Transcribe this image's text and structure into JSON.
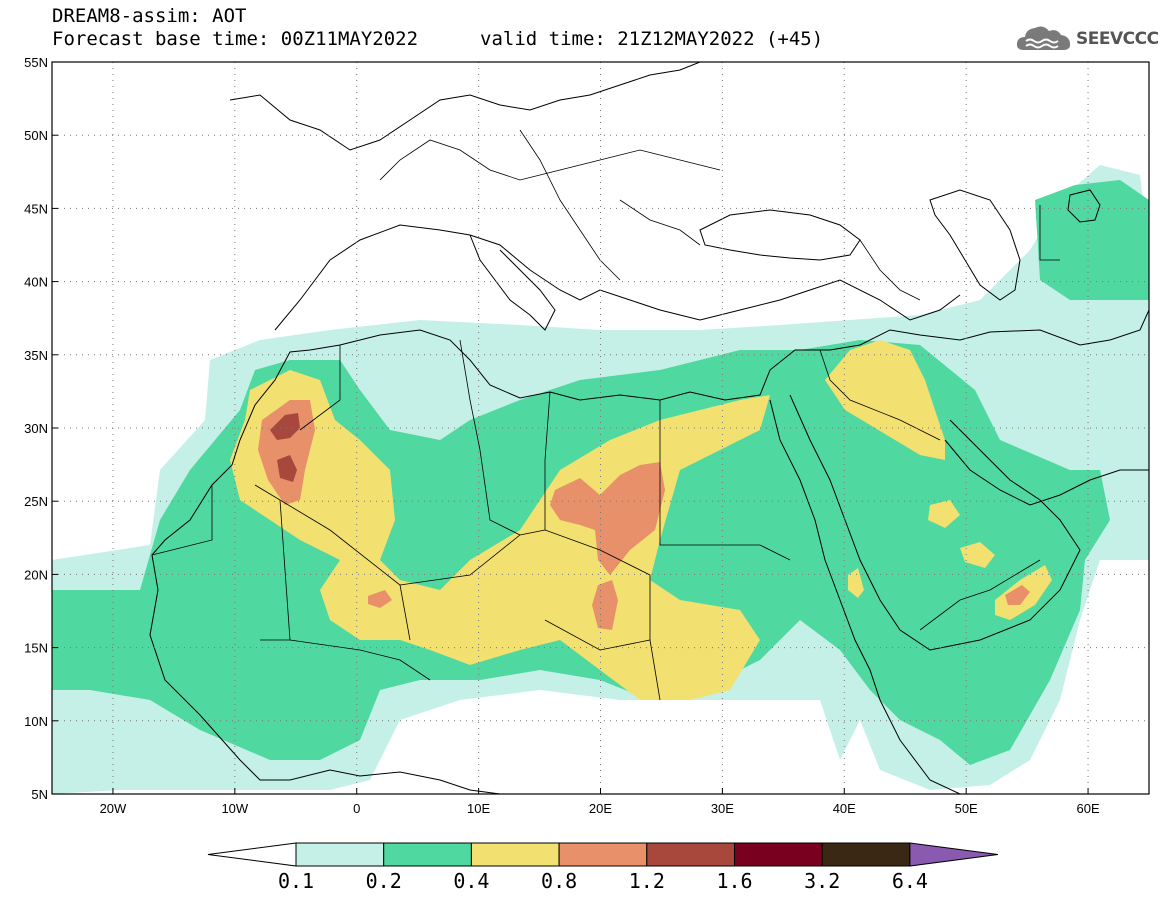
{
  "header": {
    "title": "DREAM8-assim: AOT",
    "base_time": "Forecast base time: 00Z11MAY2022",
    "valid_time": "valid time: 21Z12MAY2022 (+45)"
  },
  "logo": {
    "text": "SEEVCCC",
    "icon": "cloud-icon"
  },
  "map": {
    "latitude_labels": [
      "55N",
      "50N",
      "45N",
      "40N",
      "35N",
      "30N",
      "25N",
      "20N",
      "15N",
      "10N",
      "5N"
    ],
    "longitude_labels": [
      "20W",
      "10W",
      "0",
      "10E",
      "20E",
      "30E",
      "40E",
      "50E",
      "60E"
    ],
    "lat_range": [
      5,
      55
    ],
    "lon_range": [
      -25,
      65
    ],
    "gridlines": "dotted"
  },
  "colorbar": {
    "labels": [
      "0.1",
      "0.2",
      "0.4",
      "0.8",
      "1.2",
      "1.6",
      "3.2",
      "6.4"
    ],
    "colors": [
      "#c4f0e8",
      "#4fd8a0",
      "#f2e070",
      "#e8906a",
      "#a8483c",
      "#7a0020",
      "#3a2814",
      "#8a5ab0"
    ],
    "under_color": "#ffffff"
  },
  "field_colors": {
    "c1": "#c4f0e8",
    "c2": "#4fd8a0",
    "c3": "#f2e070",
    "c4": "#e8906a",
    "c5": "#a8483c"
  }
}
